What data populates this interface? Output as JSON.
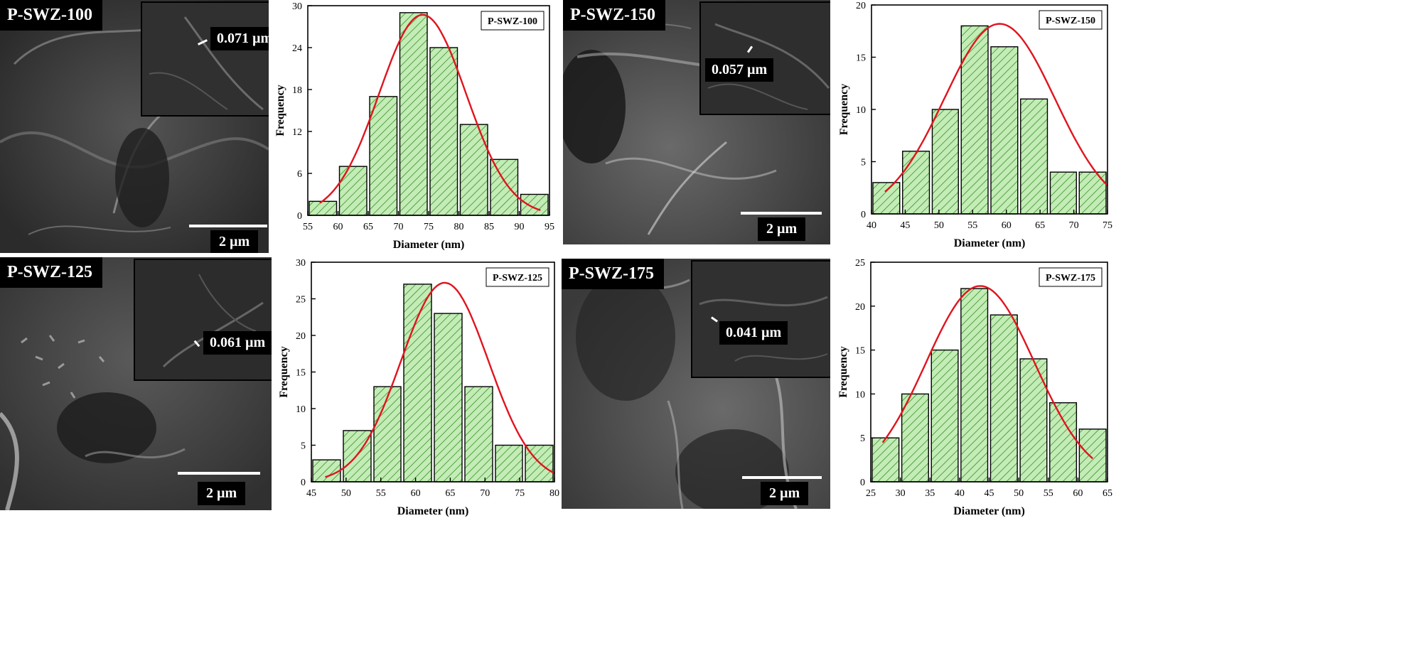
{
  "panels": [
    {
      "sem": {
        "label": "P-SWZ-100",
        "inset_measure": "0.071 µm",
        "scale_label": "2 µm"
      },
      "chart_data": {
        "type": "bar",
        "title": "P-SWZ-100",
        "xlabel": "Diameter (nm)",
        "ylabel": "Frequency",
        "xlim": [
          55,
          95
        ],
        "ylim": [
          0,
          30
        ],
        "xticks": [
          55,
          60,
          65,
          70,
          75,
          80,
          85,
          90,
          95
        ],
        "yticks": [
          0,
          6,
          12,
          18,
          24,
          30
        ],
        "bins": [
          [
            55,
            60
          ],
          [
            60,
            65
          ],
          [
            65,
            70
          ],
          [
            70,
            75
          ],
          [
            75,
            80
          ],
          [
            80,
            85
          ],
          [
            85,
            90
          ],
          [
            90,
            95
          ]
        ],
        "values": [
          2,
          7,
          17,
          29,
          24,
          13,
          8,
          3
        ],
        "fit": {
          "type": "gaussian",
          "mean": 74,
          "amplitude": 28.7,
          "sigma": 7.2,
          "range": [
            57,
            93.5
          ]
        }
      }
    },
    {
      "sem": {
        "label": "P-SWZ-150",
        "inset_measure": "0.057 µm",
        "scale_label": "2 µm"
      },
      "chart_data": {
        "type": "bar",
        "title": "P-SWZ-150",
        "xlabel": "Diameter (nm)",
        "ylabel": "Frequency",
        "xlim": [
          40,
          75
        ],
        "ylim": [
          0,
          20
        ],
        "xticks": [
          40,
          45,
          50,
          55,
          60,
          65,
          70,
          75
        ],
        "yticks": [
          0,
          5,
          10,
          15,
          20
        ],
        "bins": [
          [
            40,
            44.4
          ],
          [
            44.4,
            48.8
          ],
          [
            48.8,
            53.1
          ],
          [
            53.1,
            57.5
          ],
          [
            57.5,
            61.9
          ],
          [
            61.9,
            66.3
          ],
          [
            66.3,
            70.6
          ],
          [
            70.6,
            75
          ]
        ],
        "values": [
          3,
          6,
          10,
          18,
          16,
          11,
          4,
          4
        ],
        "fit": {
          "type": "gaussian",
          "mean": 59,
          "amplitude": 18.2,
          "sigma": 8.2,
          "range": [
            42,
            75
          ]
        }
      }
    },
    {
      "sem": {
        "label": "P-SWZ-125",
        "inset_measure": "0.061 µm",
        "scale_label": "2 µm"
      },
      "chart_data": {
        "type": "bar",
        "title": "P-SWZ-125",
        "xlabel": "Diameter (nm)",
        "ylabel": "Frequency",
        "xlim": [
          45,
          80
        ],
        "ylim": [
          0,
          30
        ],
        "xticks": [
          45,
          50,
          55,
          60,
          65,
          70,
          75,
          80
        ],
        "yticks": [
          0,
          5,
          10,
          15,
          20,
          25,
          30
        ],
        "bins": [
          [
            45,
            49.4
          ],
          [
            49.4,
            53.8
          ],
          [
            53.8,
            58.1
          ],
          [
            58.1,
            62.5
          ],
          [
            62.5,
            66.9
          ],
          [
            66.9,
            71.3
          ],
          [
            71.3,
            75.6
          ],
          [
            75.6,
            80
          ]
        ],
        "values": [
          3,
          7,
          13,
          27,
          23,
          13,
          5,
          5
        ],
        "fit": {
          "type": "gaussian",
          "mean": 64.2,
          "amplitude": 27.2,
          "sigma": 6.3,
          "range": [
            47,
            80
          ]
        }
      }
    },
    {
      "sem": {
        "label": "P-SWZ-175",
        "inset_measure": "0.041 µm",
        "scale_label": "2 µm"
      },
      "chart_data": {
        "type": "bar",
        "title": "P-SWZ-175",
        "xlabel": "Diameter (nm)",
        "ylabel": "Frequency",
        "xlim": [
          25,
          65
        ],
        "ylim": [
          0,
          25
        ],
        "xticks": [
          25,
          30,
          35,
          40,
          45,
          50,
          55,
          60,
          65
        ],
        "yticks": [
          0,
          5,
          10,
          15,
          20,
          25
        ],
        "bins": [
          [
            25,
            30
          ],
          [
            30,
            35
          ],
          [
            35,
            40
          ],
          [
            40,
            45
          ],
          [
            45,
            50
          ],
          [
            50,
            55
          ],
          [
            55,
            60
          ],
          [
            60,
            65
          ]
        ],
        "values": [
          5,
          10,
          15,
          22,
          19,
          14,
          9,
          6
        ],
        "fit": {
          "type": "gaussian",
          "mean": 43.5,
          "amplitude": 22.3,
          "sigma": 9.2,
          "range": [
            27,
            62.5
          ]
        }
      }
    }
  ],
  "style": {
    "bar_fill": "#c3ecb6",
    "hatch": "#3b8f2a",
    "fit_color": "#e0141e"
  }
}
